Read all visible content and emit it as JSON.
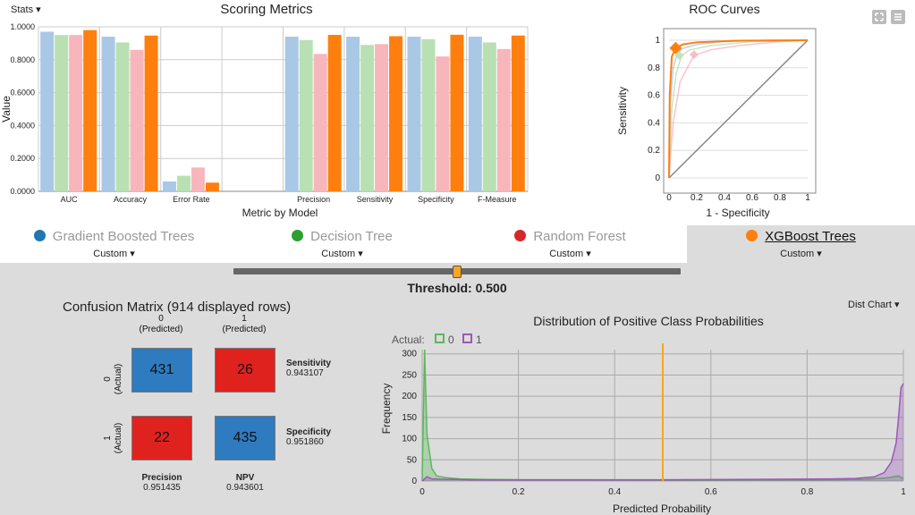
{
  "colors": {
    "gbt": "#a9c8e6",
    "dt": "#b9e0b2",
    "rf": "#f7b6bb",
    "xgb": "#ff7f0e",
    "gbt_dot": "#1f77b4",
    "dt_dot": "#2ca02c",
    "rf_dot": "#d62728",
    "xgb_dot": "#ff7f0e",
    "cm_blue": "#2e7bbf",
    "cm_red": "#e0221f",
    "class0": "#5cb85c",
    "class1": "#9b59b6",
    "threshold_line": "#f5a623"
  },
  "menus": {
    "stats": "Stats",
    "dist": "Dist Chart"
  },
  "models": [
    {
      "name": "Gradient Boosted Trees",
      "mode": "Custom",
      "color_key": "gbt_dot",
      "active": false
    },
    {
      "name": "Decision Tree",
      "mode": "Custom",
      "color_key": "dt_dot",
      "active": false
    },
    {
      "name": "Random Forest",
      "mode": "Custom",
      "color_key": "rf_dot",
      "active": false
    },
    {
      "name": "XGBoost Trees",
      "mode": "Custom",
      "color_key": "xgb_dot",
      "active": true
    }
  ],
  "threshold": {
    "label": "Threshold: 0.500",
    "value": 0.5
  },
  "confusion": {
    "title": "Confusion Matrix (914 displayed rows)",
    "col0": "0",
    "col0_sub": "(Predicted)",
    "col1": "1",
    "col1_sub": "(Predicted)",
    "row0": "0",
    "row0_sub": "(Actual)",
    "row1": "1",
    "row1_sub": "(Actual)",
    "tn": "431",
    "fp": "26",
    "fn": "22",
    "tp": "435",
    "sensitivity_label": "Sensitivity",
    "sensitivity": "0.943107",
    "specificity_label": "Specificity",
    "specificity": "0.951860",
    "precision_label": "Precision",
    "precision": "0.951435",
    "npv_label": "NPV",
    "npv": "0.943601"
  },
  "chart_data": [
    {
      "type": "bar",
      "title": "Scoring Metrics",
      "xlabel": "Metric by Model",
      "ylabel": "Value",
      "categories": [
        "AUC",
        "Accuracy",
        "Error Rate",
        "",
        "Precision",
        "Sensitivity",
        "Specificity",
        "F-Measure"
      ],
      "ylim": [
        0,
        1
      ],
      "yticks": [
        0,
        0.2,
        0.4,
        0.6,
        0.8,
        1.0
      ],
      "ytick_labels": [
        "0.0000",
        "0.2000",
        "0.4000",
        "0.6000",
        "0.8000",
        "1.0000"
      ],
      "series": [
        {
          "color_key": "gbt",
          "values": [
            0.97,
            0.94,
            0.06,
            null,
            0.94,
            0.94,
            0.94,
            0.94
          ]
        },
        {
          "color_key": "dt",
          "values": [
            0.95,
            0.905,
            0.095,
            null,
            0.92,
            0.89,
            0.925,
            0.905
          ]
        },
        {
          "color_key": "rf",
          "values": [
            0.95,
            0.86,
            0.145,
            null,
            0.835,
            0.895,
            0.82,
            0.865
          ]
        },
        {
          "color_key": "xgb",
          "values": [
            0.98,
            0.947,
            0.053,
            null,
            0.951,
            0.943,
            0.952,
            0.947
          ]
        }
      ]
    },
    {
      "type": "line",
      "title": "ROC Curves",
      "xlabel": "1 - Specificity",
      "ylabel": "Sensitivity",
      "xlim": [
        0,
        1
      ],
      "ylim": [
        0,
        1
      ],
      "ticks": [
        0,
        0.2,
        0.4,
        0.6,
        0.8,
        1
      ],
      "tick_labels": [
        "0",
        "0.2",
        "0.4",
        "0.6",
        "0.8",
        "1"
      ],
      "series": [
        {
          "color_key": "gbt",
          "x": [
            0,
            0.01,
            0.03,
            0.06,
            0.1,
            0.2,
            0.4,
            0.7,
            1
          ],
          "y": [
            0,
            0.55,
            0.8,
            0.9,
            0.94,
            0.97,
            0.99,
            1,
            1
          ]
        },
        {
          "color_key": "dt",
          "x": [
            0,
            0.02,
            0.05,
            0.09,
            0.15,
            0.3,
            0.6,
            1
          ],
          "y": [
            0,
            0.5,
            0.75,
            0.89,
            0.93,
            0.96,
            0.99,
            1
          ]
        },
        {
          "color_key": "rf",
          "x": [
            0,
            0.03,
            0.08,
            0.18,
            0.3,
            0.5,
            0.8,
            1
          ],
          "y": [
            0,
            0.4,
            0.7,
            0.89,
            0.93,
            0.96,
            0.99,
            1
          ]
        },
        {
          "color_key": "xgb",
          "x": [
            0,
            0.005,
            0.02,
            0.048,
            0.1,
            0.2,
            0.5,
            1
          ],
          "y": [
            0,
            0.6,
            0.88,
            0.943,
            0.97,
            0.985,
            0.997,
            1
          ]
        }
      ],
      "markers": [
        {
          "color_key": "gbt",
          "x": 0.06,
          "y": 0.94
        },
        {
          "color_key": "dt",
          "x": 0.075,
          "y": 0.89
        },
        {
          "color_key": "rf",
          "x": 0.18,
          "y": 0.895
        },
        {
          "color_key": "xgb",
          "x": 0.048,
          "y": 0.943
        }
      ]
    },
    {
      "type": "line",
      "title": "Distribution of Positive Class Probabilities",
      "xlabel": "Predicted Probability",
      "ylabel": "Frequency",
      "legend_title": "Actual:",
      "legend": [
        "0",
        "1"
      ],
      "xlim": [
        0,
        1
      ],
      "ylim": [
        0,
        310
      ],
      "xticks": [
        0,
        0.2,
        0.4,
        0.6,
        0.8,
        1
      ],
      "xtick_labels": [
        "0",
        "0.2",
        "0.4",
        "0.6",
        "0.8",
        "1"
      ],
      "yticks": [
        0,
        50,
        100,
        150,
        200,
        250,
        300
      ],
      "ytick_labels": [
        "0",
        "50",
        "100",
        "150",
        "200",
        "250",
        "300"
      ],
      "threshold": 0.5,
      "series": [
        {
          "name": "0",
          "color_key": "class0",
          "x": [
            0,
            0.005,
            0.01,
            0.02,
            0.03,
            0.05,
            0.08,
            0.12,
            0.2,
            0.3,
            0.5,
            0.7,
            0.85,
            0.92,
            0.95,
            0.97,
            0.98,
            0.99,
            1.0
          ],
          "y": [
            0,
            320,
            110,
            30,
            12,
            8,
            5,
            4,
            3,
            3,
            2,
            3,
            3,
            4,
            6,
            8,
            10,
            12,
            5
          ]
        },
        {
          "name": "1",
          "color_key": "class1",
          "x": [
            0,
            0.01,
            0.02,
            0.05,
            0.1,
            0.3,
            0.5,
            0.7,
            0.85,
            0.9,
            0.94,
            0.96,
            0.975,
            0.985,
            0.99,
            0.995,
            1.0
          ],
          "y": [
            0,
            10,
            5,
            4,
            3,
            3,
            3,
            4,
            5,
            6,
            10,
            20,
            45,
            90,
            150,
            220,
            230
          ]
        }
      ]
    }
  ]
}
